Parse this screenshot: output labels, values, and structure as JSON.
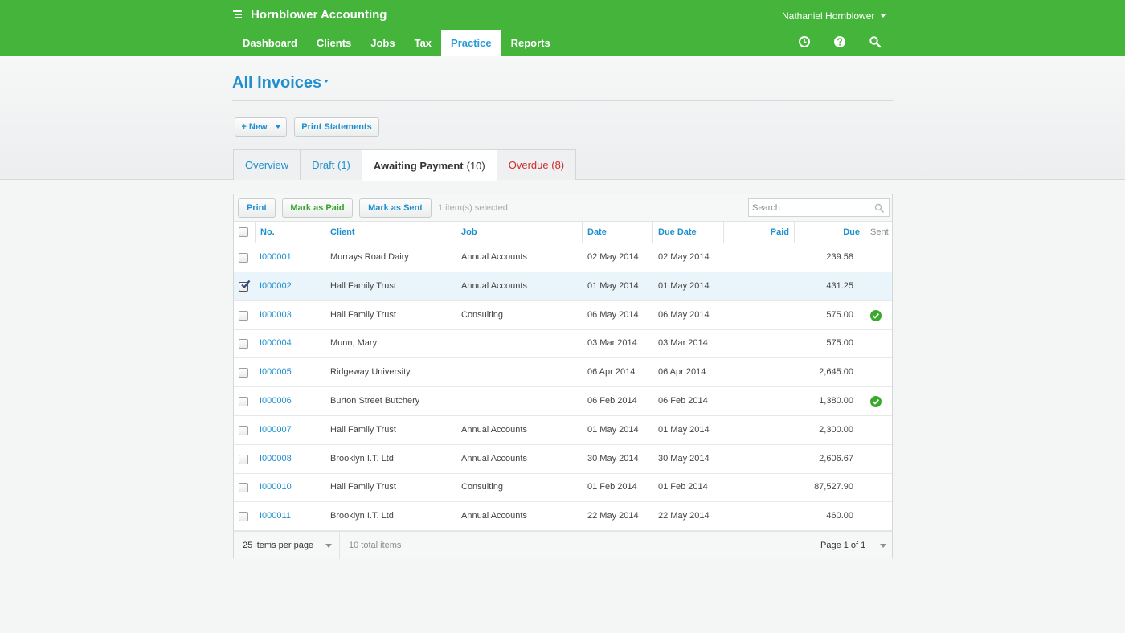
{
  "app": {
    "title": "Hornblower Accounting",
    "user": "Nathaniel Hornblower"
  },
  "nav": {
    "items": [
      {
        "label": "Dashboard"
      },
      {
        "label": "Clients"
      },
      {
        "label": "Jobs"
      },
      {
        "label": "Tax"
      },
      {
        "label": "Practice",
        "active": true
      },
      {
        "label": "Reports"
      }
    ],
    "icons": [
      "clock-icon",
      "help-icon",
      "search-icon"
    ]
  },
  "page": {
    "title": "All Invoices"
  },
  "actions": {
    "new_label": "+ New",
    "print_statements_label": "Print Statements"
  },
  "tabs": [
    {
      "label": "Overview",
      "count": ""
    },
    {
      "label": "Draft",
      "count": "(1)"
    },
    {
      "label": "Awaiting Payment",
      "count": "(10)",
      "active": true
    },
    {
      "label": "Overdue",
      "count": "(8)",
      "status": "danger"
    }
  ],
  "toolbar": {
    "print_label": "Print",
    "mark_paid_label": "Mark as Paid",
    "mark_sent_label": "Mark as Sent",
    "selection_info": "1 item(s) selected",
    "search_placeholder": "Search"
  },
  "table": {
    "columns": {
      "no": "No.",
      "client": "Client",
      "job": "Job",
      "date": "Date",
      "due_date": "Due Date",
      "paid": "Paid",
      "due": "Due",
      "sent": "Sent"
    },
    "rows": [
      {
        "no": "I000001",
        "client": "Murrays Road Dairy",
        "job": "Annual Accounts",
        "date": "02 May 2014",
        "due_date": "02 May 2014",
        "paid": "",
        "due": "239.58",
        "sent": false,
        "checked": false
      },
      {
        "no": "I000002",
        "client": "Hall Family Trust",
        "job": "Annual Accounts",
        "date": "01 May 2014",
        "due_date": "01 May 2014",
        "paid": "",
        "due": "431.25",
        "sent": false,
        "checked": true
      },
      {
        "no": "I000003",
        "client": "Hall Family Trust",
        "job": "Consulting",
        "date": "06 May 2014",
        "due_date": "06 May 2014",
        "paid": "",
        "due": "575.00",
        "sent": true,
        "checked": false
      },
      {
        "no": "I000004",
        "client": "Munn, Mary",
        "job": "",
        "date": "03 Mar 2014",
        "due_date": "03 Mar 2014",
        "paid": "",
        "due": "575.00",
        "sent": false,
        "checked": false
      },
      {
        "no": "I000005",
        "client": "Ridgeway University",
        "job": "",
        "date": "06 Apr 2014",
        "due_date": "06 Apr 2014",
        "paid": "",
        "due": "2,645.00",
        "sent": false,
        "checked": false
      },
      {
        "no": "I000006",
        "client": "Burton Street Butchery",
        "job": "",
        "date": "06 Feb 2014",
        "due_date": "06 Feb 2014",
        "paid": "",
        "due": "1,380.00",
        "sent": true,
        "checked": false
      },
      {
        "no": "I000007",
        "client": "Hall Family Trust",
        "job": "Annual Accounts",
        "date": "01 May 2014",
        "due_date": "01 May 2014",
        "paid": "",
        "due": "2,300.00",
        "sent": false,
        "checked": false
      },
      {
        "no": "I000008",
        "client": "Brooklyn I.T. Ltd",
        "job": "Annual Accounts",
        "date": "30 May 2014",
        "due_date": "30 May 2014",
        "paid": "",
        "due": "2,606.67",
        "sent": false,
        "checked": false
      },
      {
        "no": "I000010",
        "client": "Hall Family Trust",
        "job": "Consulting",
        "date": "01 Feb 2014",
        "due_date": "01 Feb 2014",
        "paid": "",
        "due": "87,527.90",
        "sent": false,
        "checked": false
      },
      {
        "no": "I000011",
        "client": "Brooklyn I.T. Ltd",
        "job": "Annual Accounts",
        "date": "22 May 2014",
        "due_date": "22 May 2014",
        "paid": "",
        "due": "460.00",
        "sent": false,
        "checked": false
      }
    ]
  },
  "footer": {
    "per_page": "25 items per page",
    "total": "10 total items",
    "page": "Page 1 of 1"
  },
  "colors": {
    "brand": "#44b43b",
    "link": "#1f8fcf",
    "danger": "#d22a2a",
    "selected_row": "#e9f4fb",
    "sent": "#3aa92b"
  }
}
